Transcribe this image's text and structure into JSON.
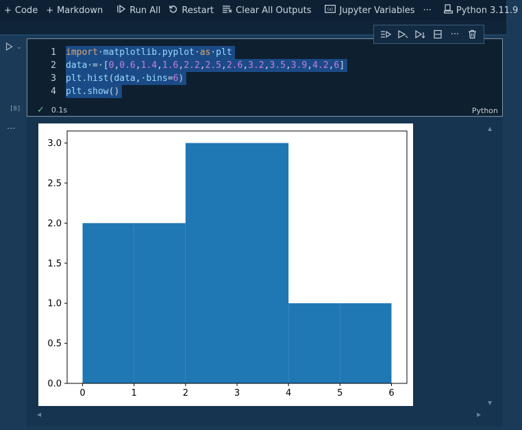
{
  "toolbar": {
    "code_label": "Code",
    "markdown_label": "Markdown",
    "run_all_label": "Run All",
    "restart_label": "Restart",
    "clear_outputs_label": "Clear All Outputs",
    "variables_label": "Jupyter Variables",
    "more_label": "···",
    "kernel_label": "Python 3.11.9"
  },
  "cell": {
    "execution_count": "[8]",
    "lines": [
      {
        "n": "1"
      },
      {
        "n": "2"
      },
      {
        "n": "3"
      },
      {
        "n": "4"
      }
    ],
    "duration": "0.1s",
    "language": "Python"
  },
  "chart_data": {
    "type": "bar",
    "histogram": true,
    "bins": 6,
    "bin_edges": [
      0,
      1,
      2,
      3,
      4,
      5,
      6
    ],
    "values": [
      2,
      2,
      3,
      3,
      1,
      1
    ],
    "xlim": [
      -0.3,
      6.3
    ],
    "ylim": [
      0,
      3.15
    ],
    "xticks": [
      "0",
      "1",
      "2",
      "3",
      "4",
      "5",
      "6"
    ],
    "yticks": [
      "0.0",
      "0.5",
      "1.0",
      "1.5",
      "2.0",
      "2.5",
      "3.0"
    ],
    "bar_color": "#1f77b4",
    "title": "",
    "xlabel": "",
    "ylabel": ""
  }
}
